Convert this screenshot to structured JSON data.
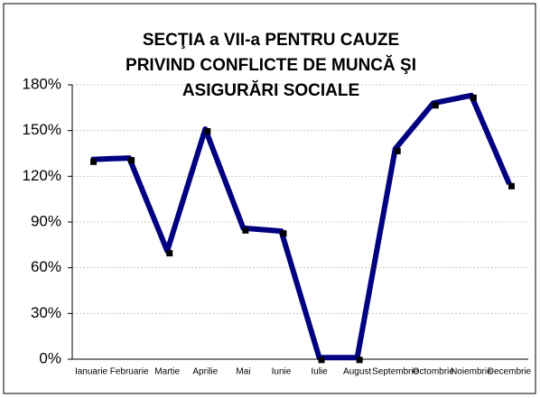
{
  "chart_data": {
    "type": "line",
    "title": [
      "SECŢIA a VII-a PENTRU CAUZE",
      "PRIVIND CONFLICTE DE MUNCĂ ŞI",
      "ASIGURĂRI SOCIALE"
    ],
    "categories": [
      "Ianuarie",
      "Februarie",
      "Martie",
      "Aprilie",
      "Mai",
      "Iunie",
      "Iulie",
      "August",
      "Septembrie",
      "Octombrie",
      "Noiembrie",
      "Decembrie"
    ],
    "series": [
      {
        "color": "#000080",
        "values": [
          131,
          132,
          71,
          151,
          86,
          84,
          1,
          1,
          138,
          168,
          173,
          115
        ]
      }
    ],
    "ylim": [
      0,
      180
    ],
    "yticks": [
      {
        "value": 0,
        "label": "0%"
      },
      {
        "value": 30,
        "label": "30%"
      },
      {
        "value": 60,
        "label": "60%"
      },
      {
        "value": 90,
        "label": "90%"
      },
      {
        "value": 120,
        "label": "120%"
      },
      {
        "value": 150,
        "label": "150%"
      },
      {
        "value": 180,
        "label": "180%"
      }
    ],
    "grid": true
  }
}
